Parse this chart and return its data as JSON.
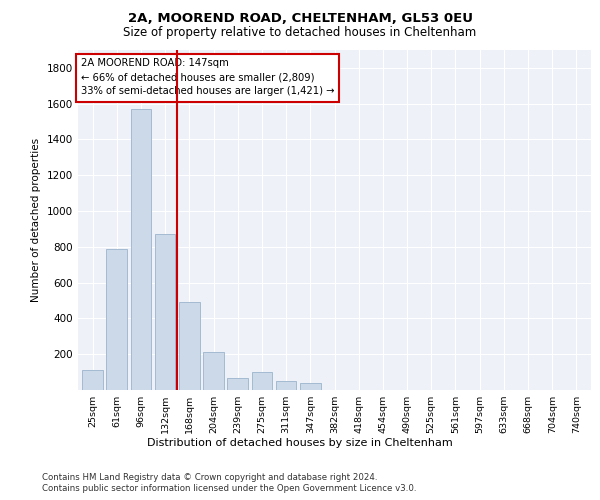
{
  "title1": "2A, MOOREND ROAD, CHELTENHAM, GL53 0EU",
  "title2": "Size of property relative to detached houses in Cheltenham",
  "xlabel": "Distribution of detached houses by size in Cheltenham",
  "ylabel": "Number of detached properties",
  "categories": [
    "25sqm",
    "61sqm",
    "96sqm",
    "132sqm",
    "168sqm",
    "204sqm",
    "239sqm",
    "275sqm",
    "311sqm",
    "347sqm",
    "382sqm",
    "418sqm",
    "454sqm",
    "490sqm",
    "525sqm",
    "561sqm",
    "597sqm",
    "633sqm",
    "668sqm",
    "704sqm",
    "740sqm"
  ],
  "values": [
    110,
    790,
    1570,
    870,
    490,
    210,
    65,
    100,
    50,
    40,
    0,
    0,
    0,
    0,
    0,
    0,
    0,
    0,
    0,
    0,
    0
  ],
  "bar_color": "#ccd9e8",
  "bar_edge_color": "#9ab4cc",
  "vline_x": 3.5,
  "vline_color": "#cc0000",
  "annotation_text": "2A MOOREND ROAD: 147sqm\n← 66% of detached houses are smaller (2,809)\n33% of semi-detached houses are larger (1,421) →",
  "annotation_box_color": "#cc0000",
  "ylim": [
    0,
    1900
  ],
  "yticks": [
    0,
    200,
    400,
    600,
    800,
    1000,
    1200,
    1400,
    1600,
    1800
  ],
  "footer1": "Contains HM Land Registry data © Crown copyright and database right 2024.",
  "footer2": "Contains public sector information licensed under the Open Government Licence v3.0.",
  "plot_bg_color": "#eef1f7"
}
